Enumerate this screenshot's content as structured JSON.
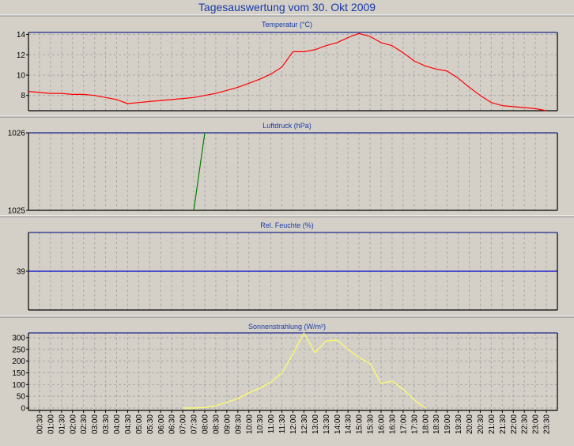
{
  "title": "Tagesauswertung vom 30. Okt 2009",
  "colors": {
    "grid": "#a8a8a8",
    "panel_bg": "#d4d0c8",
    "frame": "#000000",
    "title": "#1a3aa8"
  },
  "x_ticks": [
    "00:30",
    "01:00",
    "01:30",
    "02:00",
    "02:30",
    "03:00",
    "03:30",
    "04:00",
    "04:30",
    "05:00",
    "05:30",
    "06:00",
    "06:30",
    "07:00",
    "07:30",
    "08:00",
    "08:30",
    "09:00",
    "09:30",
    "10:00",
    "10:30",
    "11:00",
    "11:30",
    "12:00",
    "12:30",
    "13:00",
    "13:30",
    "14:00",
    "14:30",
    "15:00",
    "15:30",
    "16:00",
    "16:30",
    "17:00",
    "17:30",
    "18:00",
    "18:30",
    "19:00",
    "19:30",
    "20:00",
    "20:30",
    "21:00",
    "21:30",
    "22:00",
    "22:30",
    "23:00",
    "23:30"
  ],
  "chart_data": [
    {
      "type": "line",
      "title": "Temperatur (°C)",
      "color": "#ff0000",
      "ylim": [
        6.5,
        14.2
      ],
      "yticks": [
        8,
        10,
        12,
        14
      ],
      "grid": true,
      "x": [
        "00:00",
        "00:30",
        "01:00",
        "01:30",
        "02:00",
        "02:30",
        "03:00",
        "03:30",
        "04:00",
        "04:30",
        "05:00",
        "05:30",
        "06:00",
        "06:30",
        "07:00",
        "07:30",
        "08:00",
        "08:30",
        "09:00",
        "09:30",
        "10:00",
        "10:30",
        "11:00",
        "11:30",
        "12:00",
        "12:30",
        "13:00",
        "13:30",
        "14:00",
        "14:30",
        "15:00",
        "15:30",
        "16:00",
        "16:30",
        "17:00",
        "17:30",
        "18:00",
        "18:30",
        "19:00",
        "19:30",
        "20:00",
        "20:30",
        "21:00",
        "21:30",
        "22:00",
        "22:30",
        "23:00",
        "23:30"
      ],
      "values": [
        8.4,
        8.3,
        8.2,
        8.2,
        8.1,
        8.1,
        8.0,
        7.8,
        7.6,
        7.2,
        7.3,
        7.4,
        7.5,
        7.6,
        7.7,
        7.8,
        8.0,
        8.2,
        8.5,
        8.8,
        9.2,
        9.6,
        10.1,
        10.8,
        12.3,
        12.3,
        12.5,
        12.9,
        13.2,
        13.7,
        14.1,
        13.8,
        13.2,
        12.9,
        12.2,
        11.4,
        10.9,
        10.6,
        10.4,
        9.7,
        8.8,
        8.0,
        7.3,
        7.0,
        6.9,
        6.8,
        6.7,
        6.5
      ]
    },
    {
      "type": "line",
      "title": "Luftdruck (hPa)",
      "color": "#008000",
      "ylim": [
        1025,
        1026
      ],
      "yticks": [
        1025,
        1026
      ],
      "grid": true,
      "x": [
        "07:30",
        "08:00"
      ],
      "values": [
        1025.0,
        1026.0
      ]
    },
    {
      "type": "line",
      "title": "Rel. Feuchte (%)",
      "color": "#0000cc",
      "ylim": [
        38,
        40
      ],
      "yticks": [
        39
      ],
      "grid": true,
      "x": [
        "00:00",
        "23:59"
      ],
      "values": [
        39,
        39
      ]
    },
    {
      "type": "line",
      "title": "Sonnenstrahlung (W/m²)",
      "color": "#ffff66",
      "ylim": [
        -10,
        320
      ],
      "yticks": [
        0,
        50,
        100,
        150,
        200,
        250,
        300
      ],
      "grid": true,
      "x": [
        "07:00",
        "07:30",
        "08:00",
        "08:30",
        "09:00",
        "09:30",
        "10:00",
        "10:30",
        "11:00",
        "11:30",
        "12:00",
        "12:30",
        "13:00",
        "13:30",
        "14:00",
        "14:30",
        "15:00",
        "15:30",
        "16:00",
        "16:30",
        "17:00",
        "17:30",
        "18:00"
      ],
      "values": [
        0,
        0,
        2,
        10,
        25,
        40,
        65,
        85,
        110,
        150,
        230,
        320,
        235,
        285,
        290,
        250,
        215,
        190,
        105,
        115,
        80,
        35,
        0
      ]
    }
  ]
}
